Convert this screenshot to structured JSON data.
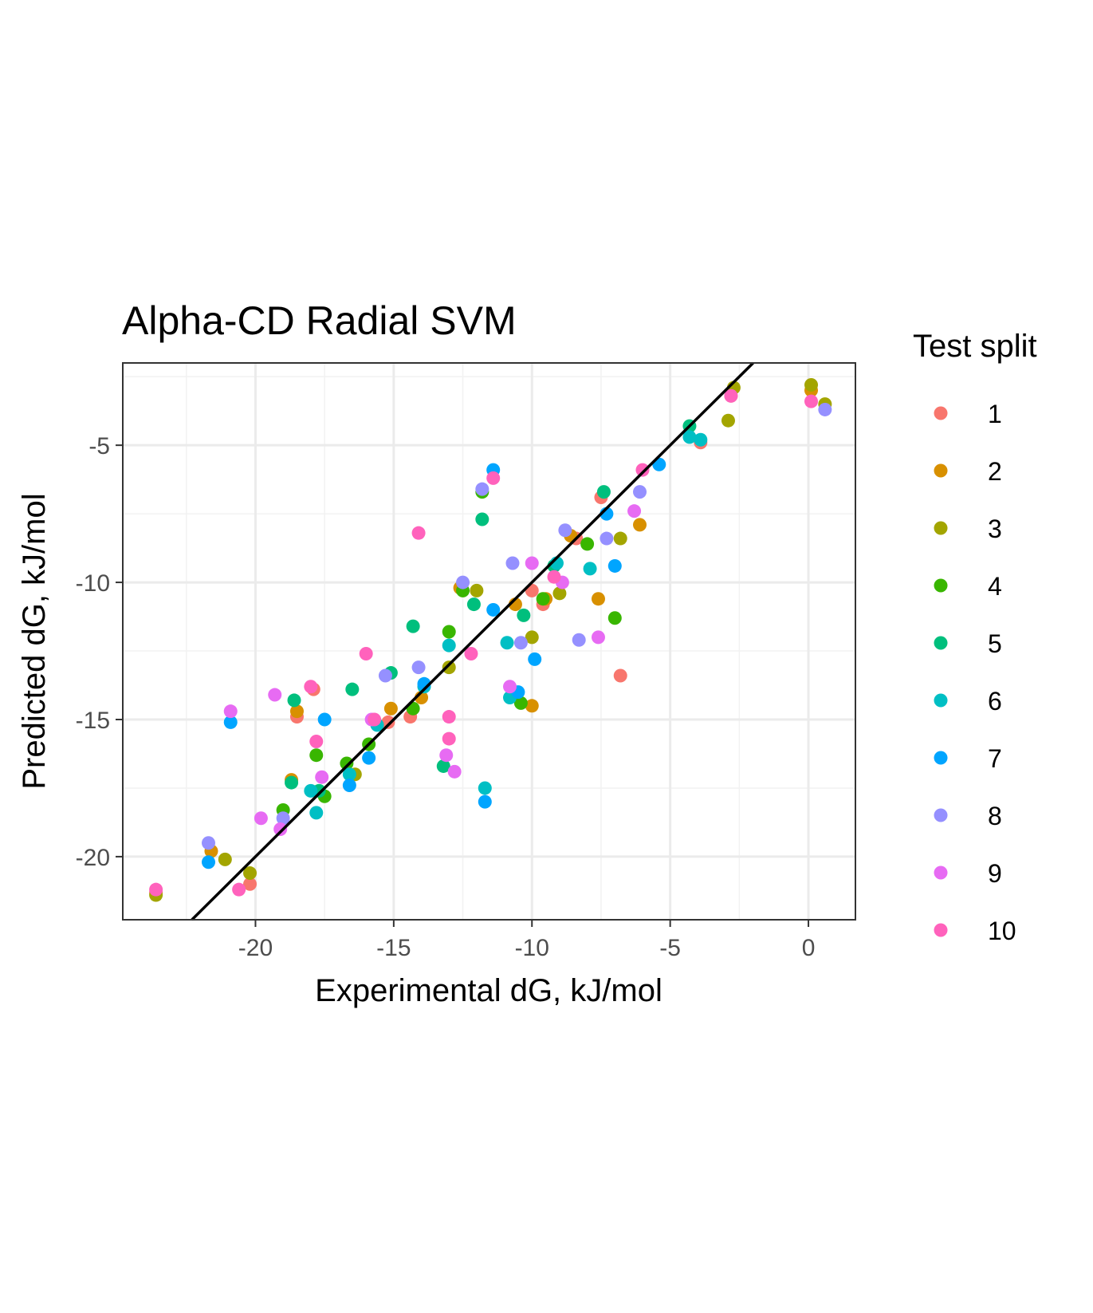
{
  "chart_data": {
    "type": "scatter",
    "title": "Alpha-CD Radial SVM",
    "xlabel": "Experimental dG, kJ/mol",
    "ylabel": "Predicted dG, kJ/mol",
    "xlim": [
      -24.8,
      1.7
    ],
    "ylim": [
      -22.3,
      -2.0
    ],
    "x_ticks": [
      -20,
      -15,
      -10,
      -5,
      0
    ],
    "y_ticks": [
      -20,
      -15,
      -10,
      -5
    ],
    "x_tick_labels": [
      "-20",
      "-15",
      "-10",
      "-5",
      "0"
    ],
    "y_tick_labels": [
      "-20",
      "-15",
      "-10",
      "-5"
    ],
    "grid": true,
    "reference_line": {
      "slope": 1,
      "intercept": 0,
      "color": "#000000"
    },
    "legend": {
      "title": "Test split",
      "placement": "right"
    },
    "series": [
      {
        "name": "1",
        "color": "#F8766D",
        "points": [
          [
            -20.2,
            -21.0
          ],
          [
            -18.5,
            -14.9
          ],
          [
            -17.9,
            -13.9
          ],
          [
            -15.2,
            -15.1
          ],
          [
            -14.4,
            -14.9
          ],
          [
            -10.0,
            -10.3
          ],
          [
            -9.6,
            -10.8
          ],
          [
            -8.4,
            -8.4
          ],
          [
            -6.8,
            -13.4
          ],
          [
            -7.5,
            -6.9
          ],
          [
            -3.9,
            -4.9
          ],
          [
            -2.8,
            -3.2
          ],
          [
            -23.6,
            -21.3
          ]
        ]
      },
      {
        "name": "2",
        "color": "#D89000",
        "points": [
          [
            -21.6,
            -19.8
          ],
          [
            -18.7,
            -17.2
          ],
          [
            -18.5,
            -14.7
          ],
          [
            -15.1,
            -14.6
          ],
          [
            -14.0,
            -14.2
          ],
          [
            -12.6,
            -10.2
          ],
          [
            -10.6,
            -10.8
          ],
          [
            -10.0,
            -14.5
          ],
          [
            -9.5,
            -10.6
          ],
          [
            -8.6,
            -8.3
          ],
          [
            -7.6,
            -10.6
          ],
          [
            -6.1,
            -7.9
          ],
          [
            0.1,
            -3.0
          ]
        ]
      },
      {
        "name": "3",
        "color": "#A3A500",
        "points": [
          [
            -23.6,
            -21.4
          ],
          [
            -21.1,
            -20.1
          ],
          [
            -20.2,
            -20.6
          ],
          [
            -16.4,
            -17.0
          ],
          [
            -13.0,
            -13.1
          ],
          [
            -12.0,
            -10.3
          ],
          [
            -10.0,
            -12.0
          ],
          [
            -9.0,
            -10.4
          ],
          [
            -6.8,
            -8.4
          ],
          [
            -2.7,
            -2.9
          ],
          [
            -2.9,
            -4.1
          ],
          [
            0.1,
            -2.8
          ],
          [
            0.6,
            -3.5
          ]
        ]
      },
      {
        "name": "4",
        "color": "#39B600",
        "points": [
          [
            -19.0,
            -18.3
          ],
          [
            -17.8,
            -16.3
          ],
          [
            -17.5,
            -17.8
          ],
          [
            -16.7,
            -16.6
          ],
          [
            -15.9,
            -15.9
          ],
          [
            -14.3,
            -14.6
          ],
          [
            -13.0,
            -11.8
          ],
          [
            -12.5,
            -10.3
          ],
          [
            -11.8,
            -6.7
          ],
          [
            -10.4,
            -14.4
          ],
          [
            -9.6,
            -10.6
          ],
          [
            -8.0,
            -8.6
          ],
          [
            -7.0,
            -11.3
          ]
        ]
      },
      {
        "name": "5",
        "color": "#00BF7D",
        "points": [
          [
            -18.6,
            -14.3
          ],
          [
            -18.7,
            -17.3
          ],
          [
            -17.7,
            -17.6
          ],
          [
            -16.5,
            -13.9
          ],
          [
            -15.1,
            -13.3
          ],
          [
            -14.3,
            -11.6
          ],
          [
            -13.2,
            -16.7
          ],
          [
            -12.1,
            -10.8
          ],
          [
            -11.8,
            -7.7
          ],
          [
            -10.3,
            -11.2
          ],
          [
            -9.2,
            -9.4
          ],
          [
            -7.4,
            -6.7
          ],
          [
            -4.3,
            -4.3
          ]
        ]
      },
      {
        "name": "6",
        "color": "#00BFC4",
        "points": [
          [
            -18.0,
            -17.6
          ],
          [
            -17.8,
            -18.4
          ],
          [
            -16.6,
            -17.0
          ],
          [
            -15.6,
            -15.2
          ],
          [
            -13.9,
            -13.8
          ],
          [
            -13.0,
            -12.3
          ],
          [
            -11.7,
            -17.5
          ],
          [
            -10.9,
            -12.2
          ],
          [
            -10.8,
            -14.2
          ],
          [
            -9.1,
            -9.3
          ],
          [
            -7.9,
            -9.5
          ],
          [
            -4.3,
            -4.7
          ],
          [
            -3.9,
            -4.8
          ]
        ]
      },
      {
        "name": "7",
        "color": "#00A5FF",
        "points": [
          [
            -21.7,
            -20.2
          ],
          [
            -20.9,
            -15.1
          ],
          [
            -17.5,
            -15.0
          ],
          [
            -16.6,
            -17.4
          ],
          [
            -15.9,
            -16.4
          ],
          [
            -13.9,
            -13.7
          ],
          [
            -11.7,
            -18.0
          ],
          [
            -11.4,
            -11.0
          ],
          [
            -10.5,
            -14.0
          ],
          [
            -9.9,
            -12.8
          ],
          [
            -7.3,
            -7.5
          ],
          [
            -7.0,
            -9.4
          ],
          [
            -5.4,
            -5.7
          ],
          [
            -11.4,
            -5.9
          ]
        ]
      },
      {
        "name": "8",
        "color": "#9590FF",
        "points": [
          [
            -21.7,
            -19.5
          ],
          [
            -19.0,
            -18.6
          ],
          [
            -15.3,
            -13.4
          ],
          [
            -14.1,
            -13.1
          ],
          [
            -12.5,
            -10.0
          ],
          [
            -11.8,
            -6.6
          ],
          [
            -10.7,
            -9.3
          ],
          [
            -10.4,
            -12.2
          ],
          [
            -8.8,
            -8.1
          ],
          [
            -8.3,
            -12.1
          ],
          [
            -7.3,
            -8.4
          ],
          [
            -6.1,
            -6.7
          ],
          [
            0.6,
            -3.7
          ]
        ]
      },
      {
        "name": "9",
        "color": "#E76BF3",
        "points": [
          [
            -20.9,
            -14.7
          ],
          [
            -19.8,
            -18.6
          ],
          [
            -19.3,
            -14.1
          ],
          [
            -19.1,
            -19.0
          ],
          [
            -17.6,
            -17.1
          ],
          [
            -15.8,
            -15.0
          ],
          [
            -13.1,
            -16.3
          ],
          [
            -12.8,
            -16.9
          ],
          [
            -10.8,
            -13.8
          ],
          [
            -10.0,
            -9.3
          ],
          [
            -8.9,
            -10.0
          ],
          [
            -7.6,
            -12.0
          ],
          [
            -6.3,
            -7.4
          ]
        ]
      },
      {
        "name": "10",
        "color": "#FF62BC",
        "points": [
          [
            -23.6,
            -21.2
          ],
          [
            -20.6,
            -21.2
          ],
          [
            -18.0,
            -13.8
          ],
          [
            -17.8,
            -15.8
          ],
          [
            -16.0,
            -12.6
          ],
          [
            -15.7,
            -15.0
          ],
          [
            -14.1,
            -8.2
          ],
          [
            -13.0,
            -14.9
          ],
          [
            -13.0,
            -15.7
          ],
          [
            -12.2,
            -12.6
          ],
          [
            -11.4,
            -6.2
          ],
          [
            -9.2,
            -9.8
          ],
          [
            -6.0,
            -5.9
          ],
          [
            -2.8,
            -3.2
          ],
          [
            0.1,
            -3.4
          ]
        ]
      }
    ]
  }
}
